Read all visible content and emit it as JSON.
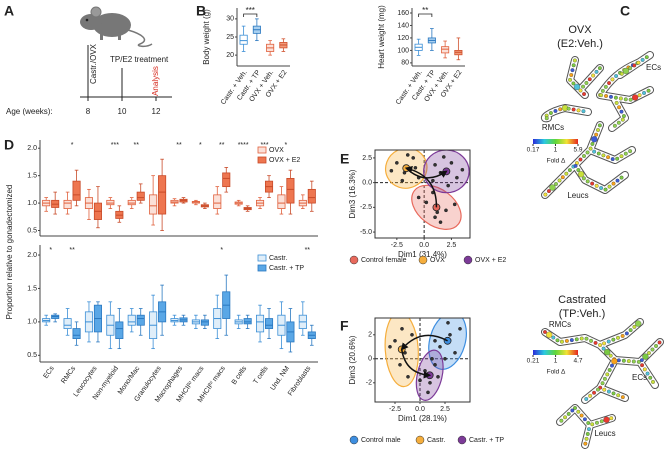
{
  "panel_a": {
    "panel": "A",
    "steps": [
      "Castr./OVX",
      "TP/E2 treatment",
      "Analysis"
    ],
    "timeline_title": "Age (weeks):",
    "timeline_ticks": [
      8,
      10,
      12
    ]
  },
  "panel_c": {
    "panel": "C",
    "maps": [
      {
        "title": "OVX",
        "subtitle": "(E2:Veh.)",
        "labels": [
          "ECs",
          "RMCs",
          "Leucs"
        ],
        "colorbar_title": "Fold Δ",
        "colorbar_ticks": [
          0.17,
          1,
          5.9
        ]
      },
      {
        "title": "Castrated",
        "subtitle": "(TP:Veh.)",
        "labels": [
          "RMCs",
          "ECs",
          "Leucs"
        ],
        "colorbar_title": "Fold Δ",
        "colorbar_ticks": [
          0.21,
          1,
          4.7
        ]
      }
    ]
  },
  "chart_data": [
    {
      "type": "box",
      "panel": "B",
      "ylabel": "Body weight (g)",
      "categories": [
        "Castr. + Veh.",
        "Castr. + TP",
        "OVX + Veh.",
        "OVX + E2"
      ],
      "values": [
        [
          21,
          23,
          24,
          25.5,
          28
        ],
        [
          24,
          26,
          27,
          28,
          30
        ],
        [
          20,
          21,
          22,
          23,
          24
        ],
        [
          21,
          22,
          22.8,
          23.5,
          24.5
        ]
      ],
      "colors": [
        "#ffffff",
        "#a9d0f0",
        "#fbe0d8",
        "#f29a7a"
      ],
      "edgecolors": [
        "#3c8fd6",
        "#2a78c0",
        "#e0603c",
        "#d0502c"
      ],
      "ylim": [
        17,
        33
      ],
      "yticks": [
        20,
        25,
        30
      ],
      "significance": "***"
    },
    {
      "type": "box",
      "ylabel": "Heart weight (mg)",
      "categories": [
        "Castr. + Veh.",
        "Castr. + TP",
        "OVX + Veh.",
        "OVX + E2"
      ],
      "values": [
        [
          92,
          100,
          105,
          110,
          118
        ],
        [
          100,
          112,
          116,
          120,
          135
        ],
        [
          88,
          96,
          102,
          106,
          115
        ],
        [
          85,
          93,
          97,
          100,
          120
        ]
      ],
      "colors": [
        "#ffffff",
        "#a9d0f0",
        "#fbe0d8",
        "#f29a7a"
      ],
      "edgecolors": [
        "#3c8fd6",
        "#2a78c0",
        "#e0603c",
        "#d0502c"
      ],
      "ylim": [
        75,
        168
      ],
      "yticks": [
        80,
        100,
        120,
        140,
        160
      ],
      "significance": "**"
    },
    {
      "type": "box",
      "panel": "D",
      "ylabel": "Proportion relative to gonadectomized",
      "ylim": [
        0.4,
        2.15
      ],
      "yticks": [
        0.5,
        {
          "value": 1,
          "label": "1.0"
        },
        1.5,
        {
          "value": 2,
          "label": "2.0"
        }
      ],
      "significance": [
        null,
        "*",
        null,
        "***",
        "**",
        null,
        "**",
        "*",
        "**",
        "****",
        "***",
        "*",
        null
      ],
      "series": [
        {
          "name": "OVX",
          "color": "#fbe0d8",
          "edgecolor": "#e0603c",
          "values": [
            [
              0.85,
              0.95,
              1.0,
              1.05,
              1.1
            ],
            [
              0.8,
              0.9,
              1.0,
              1.05,
              1.2
            ],
            [
              0.7,
              0.9,
              1.0,
              1.1,
              1.25
            ],
            [
              0.9,
              0.97,
              1.0,
              1.05,
              1.1
            ],
            [
              0.9,
              0.97,
              1.0,
              1.05,
              1.1
            ],
            [
              0.6,
              0.8,
              0.95,
              1.15,
              1.5
            ],
            [
              0.95,
              1.0,
              1.02,
              1.05,
              1.08
            ],
            [
              0.97,
              1.0,
              1.02,
              1.03,
              1.05
            ],
            [
              0.8,
              0.9,
              1.0,
              1.15,
              1.3
            ],
            [
              0.95,
              0.98,
              1.0,
              1.02,
              1.05
            ],
            [
              0.9,
              0.95,
              1.0,
              1.05,
              1.1
            ],
            [
              0.8,
              0.9,
              1.0,
              1.15,
              1.3
            ],
            [
              0.9,
              0.95,
              1.0,
              1.05,
              1.15
            ]
          ]
        },
        {
          "name": "OVX + E2",
          "color": "#ee7650",
          "edgecolor": "#c84a28",
          "values": [
            [
              0.8,
              0.92,
              0.98,
              1.05,
              1.2
            ],
            [
              0.95,
              1.05,
              1.15,
              1.4,
              1.6
            ],
            [
              0.55,
              0.7,
              0.85,
              1.0,
              1.3
            ],
            [
              0.65,
              0.72,
              0.78,
              0.85,
              0.95
            ],
            [
              1.0,
              1.05,
              1.1,
              1.2,
              1.35
            ],
            [
              0.5,
              0.8,
              1.2,
              1.5,
              1.8
            ],
            [
              1.0,
              1.02,
              1.05,
              1.07,
              1.1
            ],
            [
              0.9,
              0.93,
              0.95,
              0.97,
              1.0
            ],
            [
              1.2,
              1.3,
              1.45,
              1.55,
              1.65
            ],
            [
              0.85,
              0.88,
              0.9,
              0.92,
              0.95
            ],
            [
              1.1,
              1.2,
              1.3,
              1.4,
              1.5
            ],
            [
              0.8,
              1.0,
              1.25,
              1.45,
              1.6
            ],
            [
              0.85,
              1.0,
              1.1,
              1.25,
              1.4
            ]
          ]
        }
      ]
    },
    {
      "type": "box",
      "categories": [
        "ECs",
        "RMCs",
        "Leucocytes",
        "Non-myeloid",
        "Mono/Mac",
        "Granulocytes",
        "Macrophages",
        "MHCIIˡᵒ macs",
        "MHCIIʰⁱ macs",
        "B cells",
        "T cells",
        "Und. NM",
        "Fibroblasts"
      ],
      "ylim": [
        0.4,
        2.15
      ],
      "yticks": [
        0.5,
        {
          "value": 1,
          "label": "1.0"
        },
        1.5,
        {
          "value": 2,
          "label": "2.0"
        }
      ],
      "significance": [
        "*",
        "**",
        null,
        null,
        null,
        null,
        null,
        null,
        "*",
        null,
        null,
        null,
        "**"
      ],
      "series": [
        {
          "name": "Castr.",
          "color": "#e0eef9",
          "edgecolor": "#3c8fd6",
          "values": [
            [
              0.95,
              1.0,
              1.02,
              1.05,
              1.1
            ],
            [
              0.8,
              0.9,
              0.95,
              1.05,
              1.2
            ],
            [
              0.7,
              0.85,
              1.0,
              1.15,
              1.3
            ],
            [
              0.6,
              0.8,
              0.95,
              1.1,
              1.3
            ],
            [
              0.85,
              0.95,
              1.0,
              1.1,
              1.2
            ],
            [
              0.6,
              0.75,
              0.95,
              1.15,
              1.4
            ],
            [
              0.95,
              1.0,
              1.02,
              1.05,
              1.1
            ],
            [
              0.9,
              0.97,
              1.0,
              1.03,
              1.1
            ],
            [
              0.75,
              0.9,
              1.05,
              1.2,
              1.4
            ],
            [
              0.9,
              0.97,
              1.0,
              1.03,
              1.1
            ],
            [
              0.7,
              0.85,
              1.0,
              1.1,
              1.25
            ],
            [
              0.6,
              0.8,
              0.95,
              1.1,
              1.3
            ],
            [
              0.8,
              0.9,
              1.0,
              1.1,
              1.3
            ]
          ]
        },
        {
          "name": "Castr. + TP",
          "color": "#5aa7e6",
          "edgecolor": "#2a78c0",
          "values": [
            [
              1.0,
              1.05,
              1.08,
              1.1,
              1.12
            ],
            [
              0.65,
              0.75,
              0.8,
              0.9,
              1.0
            ],
            [
              0.7,
              0.85,
              1.05,
              1.25,
              1.3
            ],
            [
              0.6,
              0.75,
              0.9,
              1.0,
              1.2
            ],
            [
              0.8,
              0.95,
              1.05,
              1.1,
              1.2
            ],
            [
              0.8,
              1.0,
              1.15,
              1.3,
              1.55
            ],
            [
              0.95,
              1.0,
              1.03,
              1.06,
              1.1
            ],
            [
              0.9,
              0.95,
              1.0,
              1.03,
              1.1
            ],
            [
              0.8,
              1.05,
              1.25,
              1.45,
              1.7
            ],
            [
              0.9,
              0.97,
              1.0,
              1.05,
              1.1
            ],
            [
              0.75,
              0.9,
              0.95,
              1.05,
              1.2
            ],
            [
              0.55,
              0.7,
              0.85,
              1.0,
              1.2
            ],
            [
              0.65,
              0.75,
              0.8,
              0.85,
              0.95
            ]
          ]
        }
      ]
    },
    {
      "type": "scatter",
      "panel": "E",
      "xlabel": "Dim1 (31.4%)",
      "ylabel": "Dim3 (16.3%)",
      "xlim": [
        -4.5,
        4.2
      ],
      "ylim": [
        -5.6,
        3.3
      ],
      "xticks": [
        -2.5,
        {
          "value": 0,
          "label": "0.0"
        },
        2.5
      ],
      "yticks": [
        2.5,
        {
          "value": 0,
          "label": "0.0"
        },
        -2.5,
        {
          "value": -5,
          "label": "-5.0"
        }
      ],
      "series": [
        {
          "name": "Control female",
          "color": "#e8695c",
          "x": [
            0.2,
            1.0,
            2.0,
            1.5,
            -0.5,
            2.8,
            0.8,
            1.2
          ],
          "y": [
            -2.0,
            -3.5,
            -2.8,
            -4.0,
            -1.5,
            -2.2,
            -1.0,
            -3.0
          ]
        },
        {
          "name": "OVX",
          "color": "#f5ae3d",
          "x": [
            -2.5,
            -1.8,
            -1.0,
            -2.0,
            -0.8,
            -1.5,
            -3.0,
            -0.5
          ],
          "y": [
            2.0,
            1.0,
            2.5,
            0.2,
            1.5,
            2.8,
            1.2,
            0.5
          ]
        },
        {
          "name": "OVX + E2",
          "color": "#7c3a98",
          "x": [
            1.5,
            2.5,
            3.0,
            1.0,
            2.2,
            1.8,
            3.5,
            0.8
          ],
          "y": [
            1.0,
            2.0,
            0.5,
            1.8,
            -0.3,
            2.6,
            1.3,
            0.2
          ]
        }
      ]
    },
    {
      "type": "scatter",
      "panel": "F",
      "xlabel": "Dim1 (28.1%)",
      "ylabel": "Dim3 (20.6%)",
      "xlim": [
        -4.5,
        5
      ],
      "ylim": [
        -3.6,
        3.4
      ],
      "xticks": [
        -2.5,
        {
          "value": 0,
          "label": "0.0"
        },
        2.5
      ],
      "yticks": [
        2,
        0,
        -2
      ],
      "series": [
        {
          "name": "Control male",
          "color": "#3d8ee0",
          "x": [
            2.0,
            3.0,
            4.0,
            2.5,
            1.5,
            3.5,
            2.8
          ],
          "y": [
            1.0,
            2.0,
            2.5,
            0.0,
            1.5,
            0.5,
            3.0
          ]
        },
        {
          "name": "Castr.",
          "color": "#f5ae3d",
          "x": [
            -2.5,
            -1.5,
            -2.0,
            -0.8,
            -1.2,
            -3.0,
            -1.8
          ],
          "y": [
            1.5,
            0.5,
            -0.5,
            2.0,
            -1.5,
            1.0,
            2.5
          ]
        },
        {
          "name": "Castr. + TP",
          "color": "#7c3a98",
          "x": [
            0.5,
            1.0,
            1.5,
            0.0,
            0.8,
            1.8,
            1.2
          ],
          "y": [
            -1.0,
            -2.0,
            -0.5,
            -1.8,
            -2.8,
            -1.5,
            0.0
          ]
        }
      ]
    }
  ]
}
